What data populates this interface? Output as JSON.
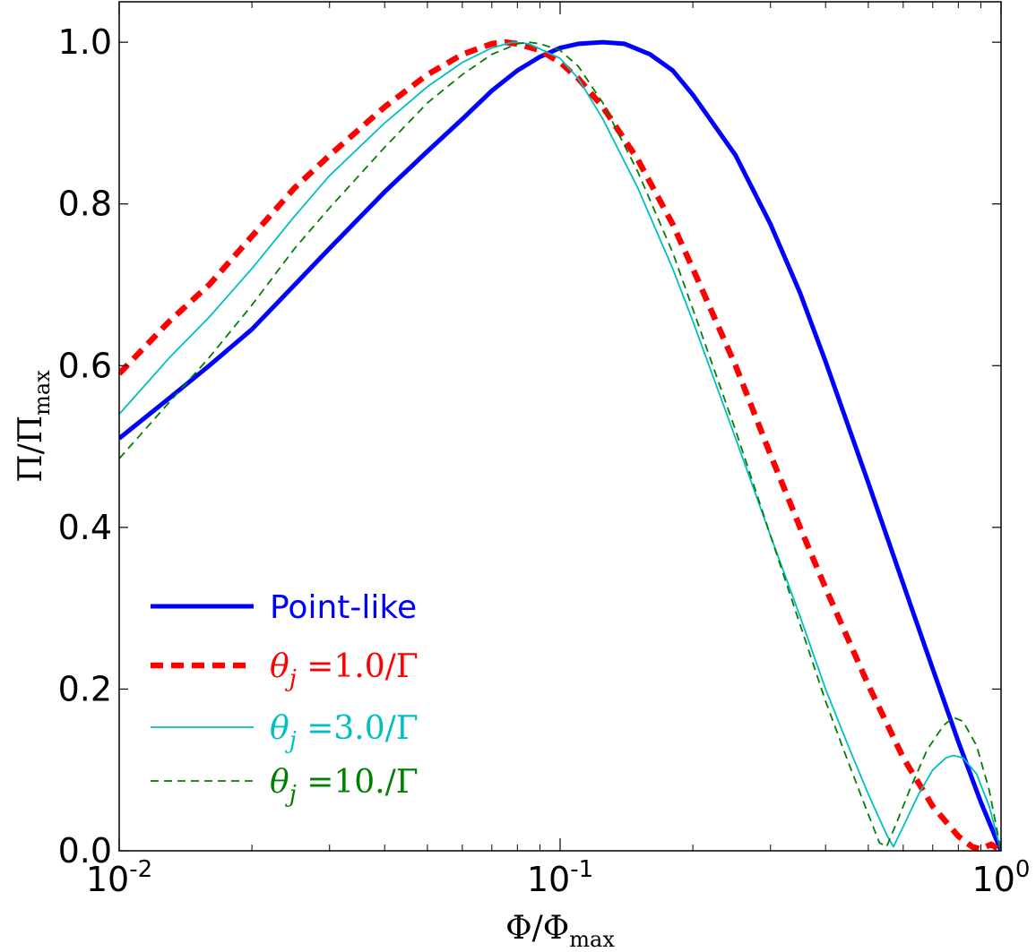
{
  "chart_data": {
    "type": "line",
    "xscale": "log",
    "xlim": [
      0.01,
      1.0
    ],
    "ylim": [
      0.0,
      1.05
    ],
    "xlabel": "Φ/Φmax",
    "ylabel": "Π/Πmax",
    "xticks": [
      {
        "value": 0.01,
        "base": "10",
        "exp": "-2"
      },
      {
        "value": 0.1,
        "base": "10",
        "exp": "-1"
      },
      {
        "value": 1.0,
        "base": "10",
        "exp": "0"
      }
    ],
    "yticks": [
      "0.0",
      "0.2",
      "0.4",
      "0.6",
      "0.8",
      "1.0"
    ],
    "grid": false,
    "legend_position": "lower-left",
    "series": [
      {
        "name": "Point-like",
        "color": "#0000ff",
        "style": "solid-thick",
        "points": [
          [
            0.01,
            0.51
          ],
          [
            0.013,
            0.56
          ],
          [
            0.016,
            0.6
          ],
          [
            0.02,
            0.645
          ],
          [
            0.025,
            0.7
          ],
          [
            0.03,
            0.745
          ],
          [
            0.04,
            0.815
          ],
          [
            0.05,
            0.865
          ],
          [
            0.06,
            0.905
          ],
          [
            0.07,
            0.94
          ],
          [
            0.08,
            0.965
          ],
          [
            0.09,
            0.982
          ],
          [
            0.1,
            0.993
          ],
          [
            0.11,
            0.998
          ],
          [
            0.125,
            1.0
          ],
          [
            0.14,
            0.998
          ],
          [
            0.16,
            0.985
          ],
          [
            0.18,
            0.965
          ],
          [
            0.2,
            0.935
          ],
          [
            0.25,
            0.86
          ],
          [
            0.3,
            0.775
          ],
          [
            0.35,
            0.69
          ],
          [
            0.4,
            0.605
          ],
          [
            0.5,
            0.455
          ],
          [
            0.6,
            0.33
          ],
          [
            0.7,
            0.225
          ],
          [
            0.8,
            0.135
          ],
          [
            0.9,
            0.06
          ],
          [
            1.0,
            0.0
          ]
        ]
      },
      {
        "name": "θj =1.0/Γ",
        "color": "#ff0000",
        "style": "dashed-thick",
        "points": [
          [
            0.01,
            0.59
          ],
          [
            0.013,
            0.655
          ],
          [
            0.016,
            0.7
          ],
          [
            0.02,
            0.76
          ],
          [
            0.025,
            0.82
          ],
          [
            0.03,
            0.86
          ],
          [
            0.04,
            0.92
          ],
          [
            0.05,
            0.96
          ],
          [
            0.06,
            0.985
          ],
          [
            0.07,
            0.998
          ],
          [
            0.075,
            1.0
          ],
          [
            0.08,
            0.998
          ],
          [
            0.09,
            0.99
          ],
          [
            0.1,
            0.975
          ],
          [
            0.11,
            0.955
          ],
          [
            0.125,
            0.92
          ],
          [
            0.15,
            0.855
          ],
          [
            0.18,
            0.775
          ],
          [
            0.2,
            0.72
          ],
          [
            0.25,
            0.6
          ],
          [
            0.3,
            0.49
          ],
          [
            0.35,
            0.4
          ],
          [
            0.4,
            0.325
          ],
          [
            0.5,
            0.205
          ],
          [
            0.6,
            0.115
          ],
          [
            0.7,
            0.055
          ],
          [
            0.8,
            0.018
          ],
          [
            0.86,
            0.005
          ],
          [
            0.9,
            0.002
          ],
          [
            0.95,
            0.008
          ],
          [
            1.0,
            0.0
          ]
        ]
      },
      {
        "name": "θj =3.0/Γ",
        "color": "#00bfbf",
        "style": "solid-thin",
        "points": [
          [
            0.01,
            0.54
          ],
          [
            0.013,
            0.61
          ],
          [
            0.016,
            0.66
          ],
          [
            0.02,
            0.72
          ],
          [
            0.025,
            0.785
          ],
          [
            0.03,
            0.835
          ],
          [
            0.04,
            0.9
          ],
          [
            0.05,
            0.945
          ],
          [
            0.06,
            0.975
          ],
          [
            0.07,
            0.993
          ],
          [
            0.078,
            1.0
          ],
          [
            0.085,
            0.998
          ],
          [
            0.1,
            0.98
          ],
          [
            0.11,
            0.955
          ],
          [
            0.125,
            0.905
          ],
          [
            0.15,
            0.82
          ],
          [
            0.18,
            0.72
          ],
          [
            0.2,
            0.655
          ],
          [
            0.25,
            0.51
          ],
          [
            0.3,
            0.39
          ],
          [
            0.35,
            0.29
          ],
          [
            0.4,
            0.2
          ],
          [
            0.45,
            0.13
          ],
          [
            0.5,
            0.07
          ],
          [
            0.55,
            0.02
          ],
          [
            0.57,
            0.005
          ],
          [
            0.6,
            0.03
          ],
          [
            0.65,
            0.07
          ],
          [
            0.7,
            0.1
          ],
          [
            0.75,
            0.115
          ],
          [
            0.78,
            0.118
          ],
          [
            0.82,
            0.115
          ],
          [
            0.88,
            0.095
          ],
          [
            0.94,
            0.055
          ],
          [
            1.0,
            0.0
          ]
        ]
      },
      {
        "name": "θj =10./Γ",
        "color": "#007f00",
        "style": "dashed-thin",
        "points": [
          [
            0.01,
            0.485
          ],
          [
            0.013,
            0.555
          ],
          [
            0.016,
            0.61
          ],
          [
            0.02,
            0.675
          ],
          [
            0.025,
            0.745
          ],
          [
            0.03,
            0.795
          ],
          [
            0.04,
            0.87
          ],
          [
            0.05,
            0.925
          ],
          [
            0.06,
            0.96
          ],
          [
            0.07,
            0.985
          ],
          [
            0.08,
            0.998
          ],
          [
            0.085,
            1.0
          ],
          [
            0.09,
            0.998
          ],
          [
            0.1,
            0.99
          ],
          [
            0.11,
            0.97
          ],
          [
            0.125,
            0.925
          ],
          [
            0.15,
            0.84
          ],
          [
            0.18,
            0.74
          ],
          [
            0.2,
            0.67
          ],
          [
            0.25,
            0.52
          ],
          [
            0.3,
            0.39
          ],
          [
            0.35,
            0.28
          ],
          [
            0.4,
            0.185
          ],
          [
            0.45,
            0.11
          ],
          [
            0.5,
            0.045
          ],
          [
            0.53,
            0.01
          ],
          [
            0.55,
            0.005
          ],
          [
            0.58,
            0.035
          ],
          [
            0.62,
            0.075
          ],
          [
            0.68,
            0.125
          ],
          [
            0.74,
            0.155
          ],
          [
            0.78,
            0.165
          ],
          [
            0.82,
            0.16
          ],
          [
            0.88,
            0.13
          ],
          [
            0.94,
            0.075
          ],
          [
            1.0,
            0.0
          ]
        ]
      }
    ]
  }
}
